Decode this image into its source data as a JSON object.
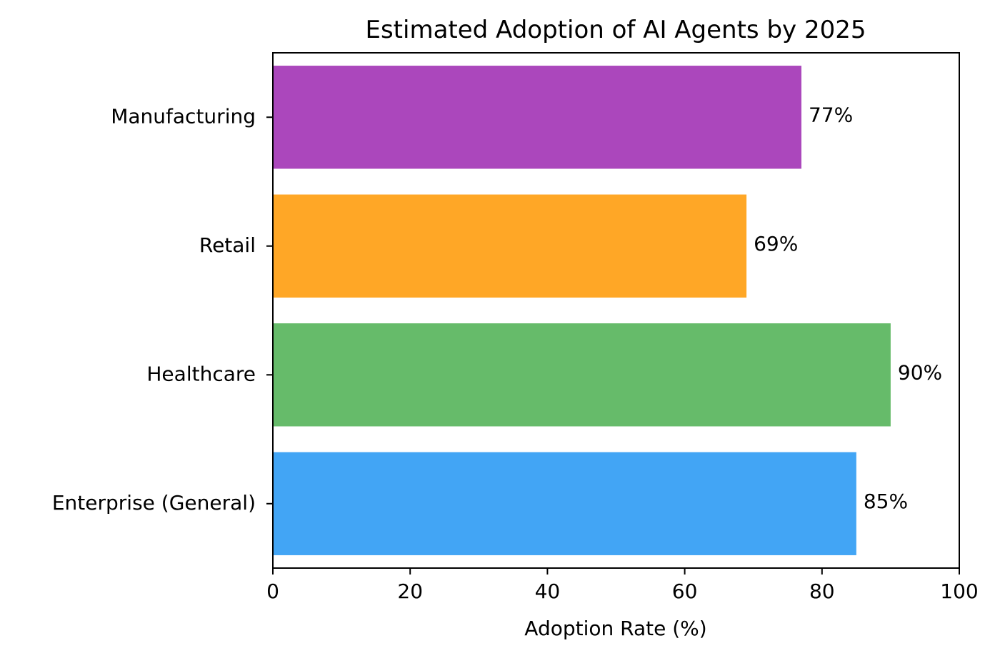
{
  "chart_data": {
    "type": "bar",
    "orientation": "horizontal",
    "title": "Estimated Adoption of AI Agents by 2025",
    "xlabel": "Adoption Rate (%)",
    "ylabel": "",
    "xlim": [
      0,
      100
    ],
    "x_ticks": [
      "0",
      "20",
      "40",
      "60",
      "80",
      "100"
    ],
    "x_tick_values": [
      0,
      20,
      40,
      60,
      80,
      100
    ],
    "categories": [
      "Enterprise (General)",
      "Healthcare",
      "Retail",
      "Manufacturing"
    ],
    "values": [
      85,
      90,
      69,
      77
    ],
    "value_labels": [
      "85%",
      "90%",
      "69%",
      "77%"
    ],
    "colors": [
      "#42a5f5",
      "#66bb6a",
      "#ffa726",
      "#ab47bc"
    ],
    "grid": false,
    "legend": "none"
  }
}
